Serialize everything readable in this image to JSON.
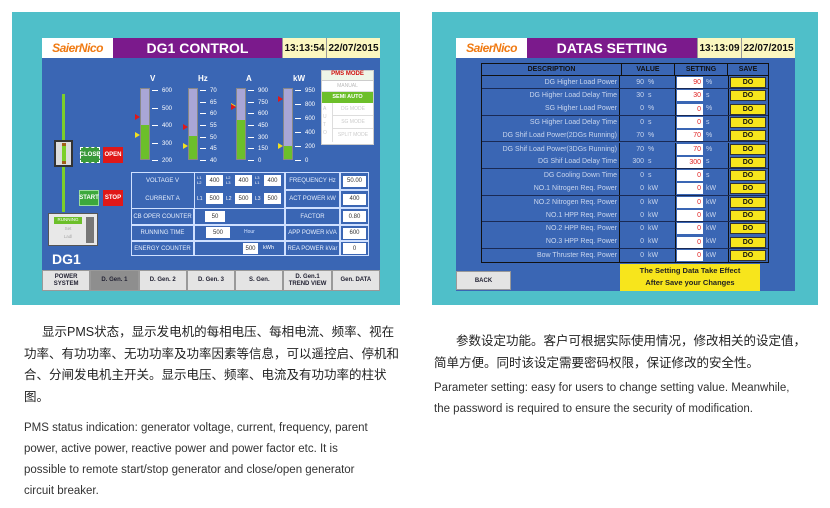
{
  "left": {
    "logo": "SaierNico",
    "title": "DG1  CONTROL",
    "time": "13:13:54",
    "date": "22/07/2015",
    "gauges": [
      {
        "unit": "V",
        "scale": [
          "600",
          "500",
          "400",
          "300",
          "200"
        ],
        "level": 0.49,
        "color": "#6cbf2a"
      },
      {
        "unit": "Hz",
        "scale": [
          "70",
          "65",
          "60",
          "55",
          "50",
          "45",
          "40"
        ],
        "level": 0.33,
        "color": "#6cbf2a"
      },
      {
        "unit": "A",
        "scale": [
          "900",
          "750",
          "600",
          "450",
          "300",
          "150",
          "0"
        ],
        "level": 0.56,
        "color": "#6cbf2a"
      },
      {
        "unit": "kW",
        "scale": [
          "950",
          "800",
          "600",
          "400",
          "200",
          "0"
        ],
        "level": 0.19,
        "color": "#6cbf2a"
      }
    ],
    "pms": {
      "title": "PMS MODE",
      "manual": "MANUAL",
      "semi": "SEMI AUTO",
      "auto": "AUTO",
      "modes": [
        "DG MODE",
        "SG MODE",
        "SPLIT MODE"
      ]
    },
    "breaker": {
      "close": "CLOSE",
      "open": "OPEN"
    },
    "engine": {
      "start": "START",
      "stop": "STOP",
      "status": [
        "RUNNING",
        "Set",
        "Ladl"
      ],
      "name": "DG1"
    },
    "table": {
      "voltage_label": "VOLTAGE  V",
      "current_label": "CURRENT  A",
      "voltage": [
        {
          "ph": "L1 L2",
          "v": "400"
        },
        {
          "ph": "L2 L3",
          "v": "400"
        },
        {
          "ph": "L3 L1",
          "v": "400"
        }
      ],
      "current": [
        {
          "ph": "L1",
          "v": "500"
        },
        {
          "ph": "L2",
          "v": "500"
        },
        {
          "ph": "L3",
          "v": "500"
        }
      ],
      "cb_label": "CB OPER COUNTER",
      "cb": "50",
      "run_label": "RUNNING TIME",
      "run": "500",
      "run_unit": "Hour",
      "energy_label": "ENERGY COUNTER",
      "energy": "500",
      "energy_unit": "kWh",
      "freq_label": "FREQUENCY Hz",
      "freq": "50.00",
      "act_label": "ACT POWER kW",
      "act": "400",
      "factor_label": "FACTOR",
      "factor": "0.80",
      "app_label": "APP POWER kVA",
      "app": "600",
      "rea_label": "REA POWER kVar",
      "rea": "0"
    },
    "tabs": [
      "POWER SYSTEM",
      "D. Gen. 1",
      "D. Gen. 2",
      "D. Gen. 3",
      "S. Gen.",
      "D. Gen.1 TREND VIEW",
      "Gen. DATA"
    ],
    "active_tab": 1
  },
  "right": {
    "logo": "SaierNico",
    "title": "DATAS SETTING",
    "time": "13:13:09",
    "date": "22/07/2015",
    "headers": [
      "DESCRIPTION",
      "VALUE",
      "SETTING",
      "SAVE"
    ],
    "rows": [
      {
        "desc": "DG Higher Load Power",
        "value": "90",
        "unit": "%",
        "setting": "90",
        "save": "DO"
      },
      {
        "desc": "DG Higher Load Delay Time",
        "value": "30",
        "unit": "s",
        "setting": "30",
        "save": "DO"
      },
      {
        "desc": "SG Higher Load Power",
        "value": "0",
        "unit": "%",
        "setting": "0",
        "save": "DO"
      },
      {
        "desc": "SG Higher Load Delay Time",
        "value": "0",
        "unit": "s",
        "setting": "0",
        "save": "DO"
      },
      {
        "desc": "DG Shif Load Power(2DGs Running)",
        "value": "70",
        "unit": "%",
        "setting": "70",
        "save": "DO"
      },
      {
        "desc": "DG Shif Load Power(3DGs Running)",
        "value": "70",
        "unit": "%",
        "setting": "70",
        "save": "DO"
      },
      {
        "desc": "DG Shif Load Delay Time",
        "value": "300",
        "unit": "s",
        "setting": "300",
        "save": "DO"
      },
      {
        "desc": "DG Cooling Down Time",
        "value": "0",
        "unit": "s",
        "setting": "0",
        "save": "DO"
      },
      {
        "desc": "NO.1 Nitrogen Req. Power",
        "value": "0",
        "unit": "kW",
        "setting": "0",
        "save": "DO"
      },
      {
        "desc": "NO.2 Nitrogen Req. Power",
        "value": "0",
        "unit": "kW",
        "setting": "0",
        "save": "DO"
      },
      {
        "desc": "NO.1 HPP Req. Power",
        "value": "0",
        "unit": "kW",
        "setting": "0",
        "save": "DO"
      },
      {
        "desc": "NO.2 HPP Req. Power",
        "value": "0",
        "unit": "kW",
        "setting": "0",
        "save": "DO"
      },
      {
        "desc": "NO.3 HPP Req. Power",
        "value": "0",
        "unit": "kW",
        "setting": "0",
        "save": "DO"
      },
      {
        "desc": "Bow Thruster Req. Power",
        "value": "0",
        "unit": "kW",
        "setting": "0",
        "save": "DO"
      }
    ],
    "back": "BACK",
    "notice": [
      "The Setting Data Take Effect",
      "After Save your Changes"
    ]
  },
  "captions": {
    "left_cn": [
      "显示PMS状态，显示发电机的每相电压、每相电流、频率、视在",
      "功率、有功功率、无功功率及功率因素等信息，可以遥控启、停机和",
      "合、分闸发电机主开关。显示电压、频率、电流及有功功率的柱状",
      "图。"
    ],
    "left_en": [
      "PMS status indication: generator voltage, current, frequency, parent",
      "power, active power, reactive power and power factor etc. It is",
      "possible to remote start/stop generator and close/open generator",
      "circuit breaker."
    ],
    "right_cn": [
      "参数设定功能。客户可根据实际使用情况，修改相关的设定值，",
      "简单方便。同时该设定需要密码权限，保证修改的安全性。"
    ],
    "right_en": [
      "Parameter setting: easy for users to change setting value. Meanwhile,",
      "the password is required to ensure the security of modification."
    ]
  }
}
